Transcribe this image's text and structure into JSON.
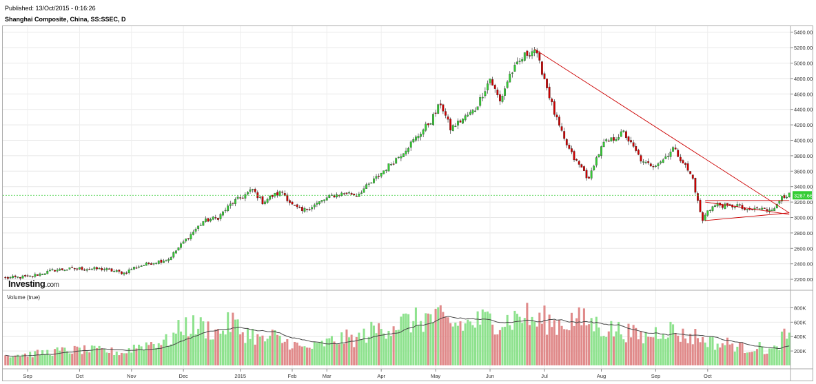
{
  "header": {
    "published": "Published: 13/Oct/2015 - 0:16:26",
    "subtitle": "Shanghai Composite, China, SS:SSEC, D"
  },
  "logo": {
    "brand": "Investing",
    "domain": ".com"
  },
  "chart_data": [
    {
      "type": "candlestick",
      "title": "Shanghai Composite, China, SS:SSEC, D",
      "y_ticks": [
        2200,
        2400,
        2600,
        2800,
        3000,
        3200,
        3400,
        3600,
        3800,
        4000,
        4200,
        4400,
        4600,
        4800,
        5000,
        5200,
        5400
      ],
      "ylim": [
        2040,
        5460
      ],
      "x_labels": [
        "Sep",
        "Oct",
        "Nov",
        "Dec",
        "2015",
        "Feb",
        "Mar",
        "Apr",
        "May",
        "Jun",
        "Jul",
        "Aug",
        "Sep",
        "Oct"
      ],
      "x_label_index": [
        9,
        30,
        51,
        72,
        95,
        116,
        130,
        152,
        174,
        196,
        218,
        241,
        263,
        284
      ],
      "current_price_label": "3287.66",
      "current_price": 3287.66,
      "grid": true,
      "colors": {
        "up": "#33cc33",
        "down": "#cc0000",
        "price_line": "#33cc33",
        "trendline": "#cc0000"
      },
      "close_anchors": [
        [
          0,
          2215
        ],
        [
          10,
          2235
        ],
        [
          20,
          2320
        ],
        [
          30,
          2340
        ],
        [
          40,
          2330
        ],
        [
          48,
          2280
        ],
        [
          52,
          2350
        ],
        [
          60,
          2420
        ],
        [
          66,
          2460
        ],
        [
          72,
          2680
        ],
        [
          80,
          2950
        ],
        [
          86,
          3000
        ],
        [
          92,
          3200
        ],
        [
          95,
          3250
        ],
        [
          100,
          3360
        ],
        [
          104,
          3200
        ],
        [
          108,
          3280
        ],
        [
          112,
          3330
        ],
        [
          116,
          3160
        ],
        [
          120,
          3080
        ],
        [
          126,
          3180
        ],
        [
          132,
          3280
        ],
        [
          138,
          3320
        ],
        [
          142,
          3290
        ],
        [
          148,
          3450
        ],
        [
          154,
          3640
        ],
        [
          160,
          3820
        ],
        [
          166,
          4030
        ],
        [
          172,
          4250
        ],
        [
          176,
          4480
        ],
        [
          180,
          4150
        ],
        [
          186,
          4300
        ],
        [
          190,
          4400
        ],
        [
          196,
          4800
        ],
        [
          200,
          4500
        ],
        [
          204,
          4850
        ],
        [
          210,
          5100
        ],
        [
          214,
          5180
        ],
        [
          218,
          4800
        ],
        [
          222,
          4350
        ],
        [
          226,
          4000
        ],
        [
          230,
          3760
        ],
        [
          234,
          3600
        ],
        [
          236,
          3480
        ],
        [
          238,
          3700
        ],
        [
          242,
          3960
        ],
        [
          246,
          4020
        ],
        [
          250,
          4100
        ],
        [
          254,
          3900
        ],
        [
          258,
          3700
        ],
        [
          262,
          3680
        ],
        [
          266,
          3750
        ],
        [
          270,
          3900
        ],
        [
          274,
          3720
        ],
        [
          278,
          3500
        ],
        [
          280,
          3200
        ],
        [
          282,
          2950
        ],
        [
          284,
          3100
        ],
        [
          288,
          3170
        ],
        [
          292,
          3140
        ],
        [
          296,
          3160
        ],
        [
          300,
          3080
        ],
        [
          304,
          3120
        ],
        [
          308,
          3100
        ],
        [
          312,
          3150
        ],
        [
          314,
          3288
        ]
      ],
      "trendlines": [
        {
          "from": [
            214,
            5180
          ],
          "to": [
            317,
            3060
          ]
        },
        {
          "from": [
            283,
            3220
          ],
          "to": [
            317,
            3220
          ]
        },
        {
          "from": [
            283,
            2960
          ],
          "to": [
            317,
            3060
          ]
        },
        {
          "from": [
            283,
            3200
          ],
          "to": [
            317,
            3040
          ]
        }
      ]
    },
    {
      "type": "bar",
      "title": "Volume (true)",
      "y_ticks_labels": [
        "200K",
        "400K",
        "600K",
        "800K"
      ],
      "y_ticks": [
        200000,
        400000,
        600000,
        800000
      ],
      "ylim": [
        0,
        900000
      ],
      "volume_anchors": [
        [
          0,
          140000
        ],
        [
          10,
          150000
        ],
        [
          20,
          190000
        ],
        [
          30,
          210000
        ],
        [
          40,
          200000
        ],
        [
          48,
          170000
        ],
        [
          52,
          250000
        ],
        [
          60,
          310000
        ],
        [
          66,
          330000
        ],
        [
          72,
          540000
        ],
        [
          80,
          520000
        ],
        [
          86,
          440000
        ],
        [
          92,
          600000
        ],
        [
          95,
          460000
        ],
        [
          100,
          420000
        ],
        [
          104,
          330000
        ],
        [
          108,
          400000
        ],
        [
          112,
          330000
        ],
        [
          116,
          300000
        ],
        [
          120,
          230000
        ],
        [
          126,
          260000
        ],
        [
          132,
          330000
        ],
        [
          138,
          370000
        ],
        [
          142,
          350000
        ],
        [
          148,
          460000
        ],
        [
          154,
          520000
        ],
        [
          160,
          580000
        ],
        [
          166,
          600000
        ],
        [
          172,
          650000
        ],
        [
          176,
          620000
        ],
        [
          180,
          560000
        ],
        [
          186,
          550000
        ],
        [
          190,
          590000
        ],
        [
          196,
          620000
        ],
        [
          200,
          600000
        ],
        [
          204,
          610000
        ],
        [
          210,
          700000
        ],
        [
          214,
          580000
        ],
        [
          218,
          620000
        ],
        [
          222,
          560000
        ],
        [
          226,
          580000
        ],
        [
          230,
          620000
        ],
        [
          234,
          600000
        ],
        [
          236,
          600000
        ],
        [
          238,
          560000
        ],
        [
          242,
          510000
        ],
        [
          246,
          480000
        ],
        [
          250,
          470000
        ],
        [
          254,
          420000
        ],
        [
          258,
          380000
        ],
        [
          262,
          430000
        ],
        [
          266,
          500000
        ],
        [
          270,
          480000
        ],
        [
          274,
          400000
        ],
        [
          278,
          380000
        ],
        [
          280,
          420000
        ],
        [
          282,
          330000
        ],
        [
          284,
          350000
        ],
        [
          288,
          280000
        ],
        [
          292,
          300000
        ],
        [
          296,
          260000
        ],
        [
          300,
          220000
        ],
        [
          304,
          260000
        ],
        [
          308,
          200000
        ],
        [
          312,
          220000
        ],
        [
          314,
          380000
        ]
      ]
    }
  ]
}
